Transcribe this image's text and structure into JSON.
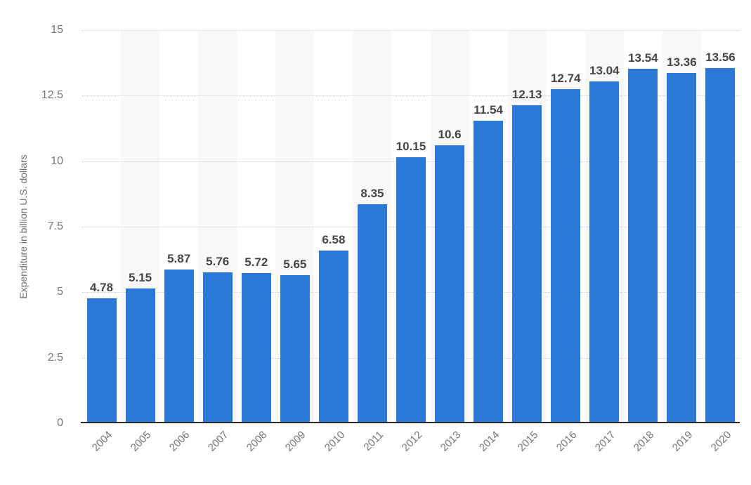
{
  "chart_data": {
    "type": "bar",
    "title": "",
    "xlabel": "",
    "ylabel": "Expenditure in billion U.S. dollars",
    "categories": [
      "2004",
      "2005",
      "2006",
      "2007",
      "2008",
      "2009",
      "2010",
      "2011",
      "2012",
      "2013",
      "2014",
      "2015",
      "2016",
      "2017",
      "2018",
      "2019",
      "2020"
    ],
    "values": [
      4.78,
      5.15,
      5.87,
      5.76,
      5.72,
      5.65,
      6.58,
      8.35,
      10.15,
      10.6,
      11.54,
      12.13,
      12.74,
      13.04,
      13.54,
      13.36,
      13.56
    ],
    "value_labels": [
      "4.78",
      "5.15",
      "5.87",
      "5.76",
      "5.72",
      "5.65",
      "6.58",
      "8.35",
      "10.15",
      "10.6",
      "11.54",
      "12.13",
      "12.74",
      "13.04",
      "13.54",
      "13.36",
      "13.56"
    ],
    "ylim": [
      0,
      15
    ],
    "yticks": [
      "0",
      "2.5",
      "5",
      "7.5",
      "10",
      "12.5",
      "15"
    ],
    "ytick_values": [
      0,
      2.5,
      5,
      7.5,
      10,
      12.5,
      15
    ],
    "grid": "horizontal dotted lines",
    "legend": "none",
    "plot_bands": "alternating light vertical bands behind every other category",
    "colors": {
      "bar": "#2b78d9",
      "plot_band": "#f8f8f8",
      "gridline": "#c9c9c9",
      "axis_line": "#2b2b2b",
      "value_label": "#454545",
      "tick_label": "#757575"
    }
  }
}
